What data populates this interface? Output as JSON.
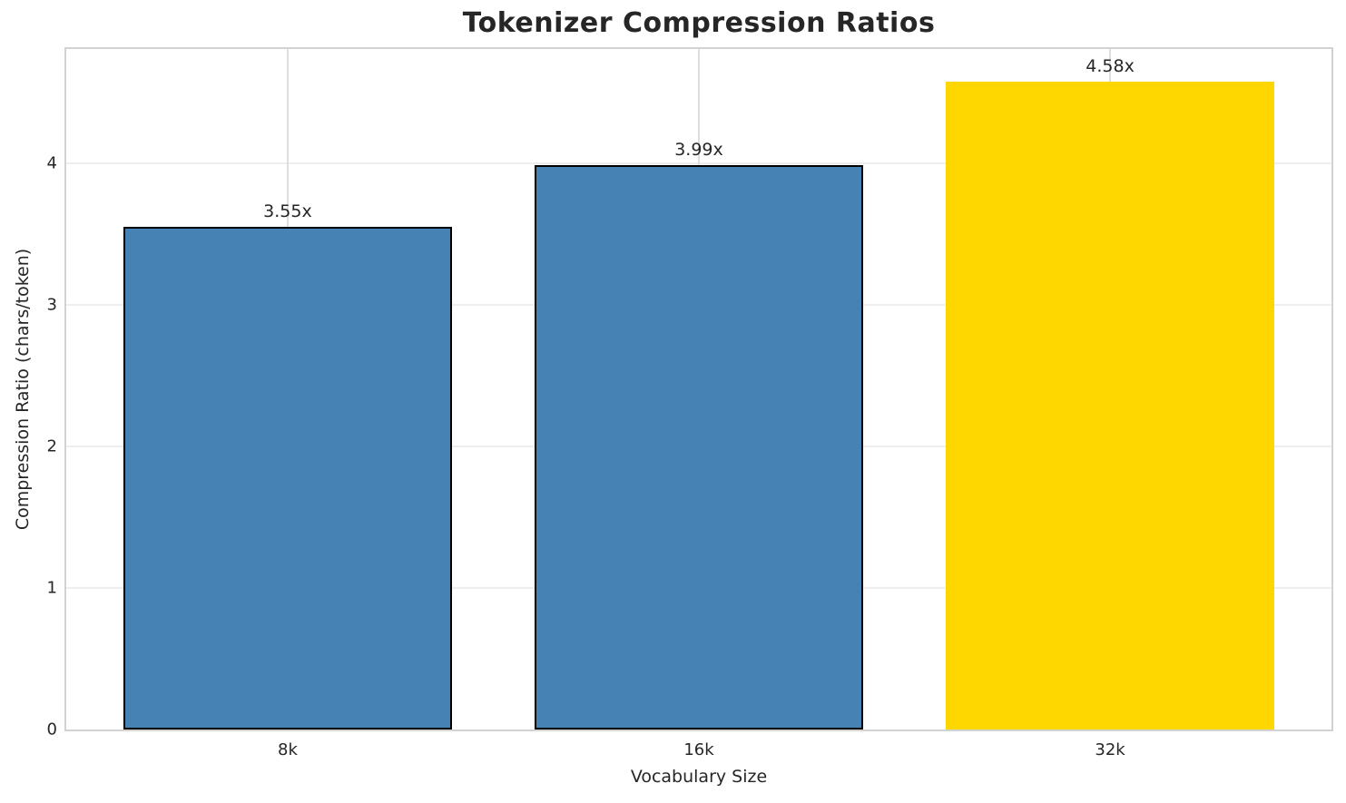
{
  "chart_data": {
    "type": "bar",
    "title": "Tokenizer Compression Ratios",
    "categories": [
      "8k",
      "16k",
      "32k"
    ],
    "values": [
      3.55,
      3.99,
      4.58
    ],
    "bar_labels": [
      "3.55x",
      "3.99x",
      "4.58x"
    ],
    "bar_colors": [
      "#4682B4",
      "#4682B4",
      "#FFD700"
    ],
    "bar_edge_colors": [
      "#000000",
      "#000000",
      "none"
    ],
    "xlabel": "Vocabulary Size",
    "ylabel": "Compression Ratio (chars/token)",
    "ylim": [
      0,
      4.81
    ],
    "yticks": [
      0,
      1,
      2,
      3,
      4
    ],
    "grid": true,
    "legend": false
  },
  "colors": {
    "background": "#ffffff",
    "text": "#262626",
    "spine": "#d2d2d2",
    "grid_horizontal": "#eeeeee",
    "grid_vertical": "#dedede"
  }
}
